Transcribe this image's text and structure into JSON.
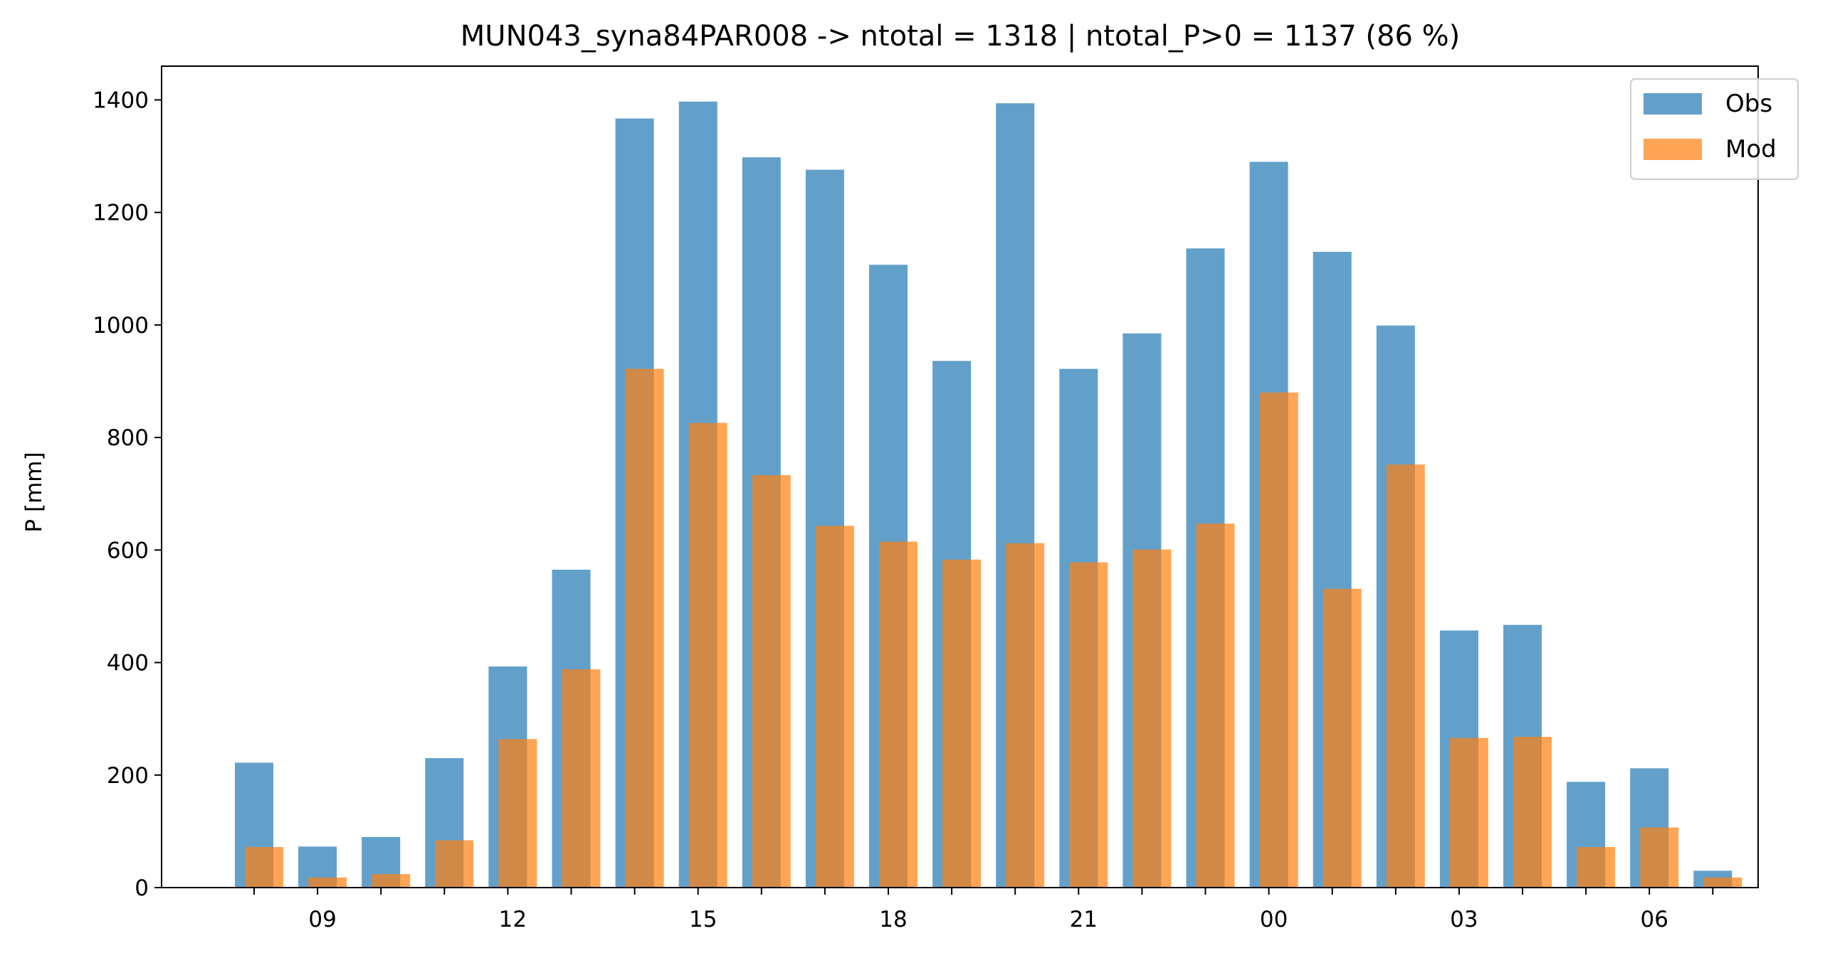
{
  "chart_data": {
    "type": "bar",
    "title": "MUN043_syna84PAR008 -> ntotal = 1318 | ntotal_P>0 = 1137 (86 %)",
    "xlabel": "",
    "ylabel": "P [mm]",
    "ylim": [
      0,
      1460
    ],
    "yticks": [
      0,
      200,
      400,
      600,
      800,
      1000,
      1200,
      1400
    ],
    "hours": [
      8,
      9,
      10,
      11,
      12,
      13,
      14,
      15,
      16,
      17,
      18,
      19,
      20,
      21,
      22,
      23,
      0,
      1,
      2,
      3,
      4,
      5,
      6,
      7
    ],
    "xticks": [
      {
        "hour_index": 1,
        "label": "09"
      },
      {
        "hour_index": 4,
        "label": "12"
      },
      {
        "hour_index": 7,
        "label": "15"
      },
      {
        "hour_index": 10,
        "label": "18"
      },
      {
        "hour_index": 13,
        "label": "21"
      },
      {
        "hour_index": 16,
        "label": "00"
      },
      {
        "hour_index": 19,
        "label": "03"
      },
      {
        "hour_index": 22,
        "label": "06"
      }
    ],
    "grid": false,
    "legend_position": "top-right",
    "series": [
      {
        "name": "Obs",
        "color": "#1f77b4",
        "values": [
          222,
          73,
          90,
          230,
          393,
          565,
          1367,
          1397,
          1298,
          1276,
          1107,
          936,
          1394,
          922,
          985,
          1136,
          1290,
          1130,
          999,
          457,
          467,
          188,
          212,
          30
        ]
      },
      {
        "name": "Mod",
        "color": "#ff7f0e",
        "values": [
          72,
          18,
          24,
          84,
          264,
          388,
          922,
          826,
          733,
          643,
          615,
          583,
          612,
          578,
          601,
          647,
          880,
          531,
          752,
          266,
          268,
          72,
          107,
          18
        ]
      }
    ]
  }
}
